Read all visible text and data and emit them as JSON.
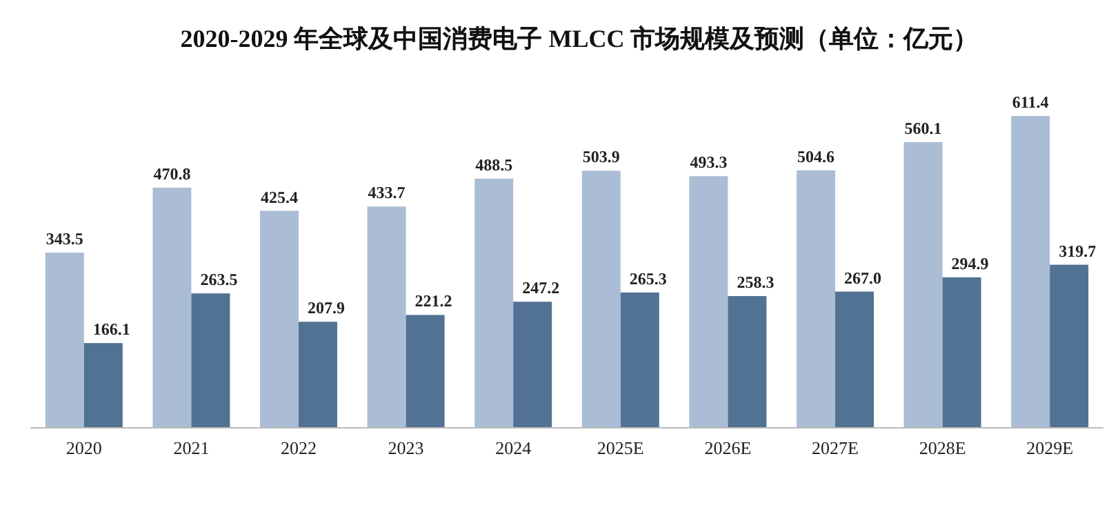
{
  "chart_data": {
    "type": "bar",
    "title": "2020-2029 年全球及中国消费电子 MLCC 市场规模及预测（单位：亿元）",
    "categories": [
      "2020",
      "2021",
      "2022",
      "2023",
      "2024",
      "2025E",
      "2026E",
      "2027E",
      "2028E",
      "2029E"
    ],
    "series": [
      {
        "color": "#aabdd4",
        "values": [
          343.5,
          470.8,
          425.4,
          433.7,
          488.5,
          503.9,
          493.3,
          504.6,
          560.1,
          611.4
        ],
        "value_labels": [
          "343.5",
          "470.8",
          "425.4",
          "433.7",
          "488.5",
          "503.9",
          "493.3",
          "504.6",
          "560.1",
          "611.4"
        ]
      },
      {
        "color": "#527294",
        "values": [
          166.1,
          263.5,
          207.9,
          221.2,
          247.2,
          265.3,
          258.3,
          267.0,
          294.9,
          319.7
        ],
        "value_labels": [
          "166.1",
          "263.5",
          "207.9",
          "221.2",
          "247.2",
          "265.3",
          "258.3",
          "267.0",
          "294.9",
          "319.7"
        ]
      }
    ]
  }
}
